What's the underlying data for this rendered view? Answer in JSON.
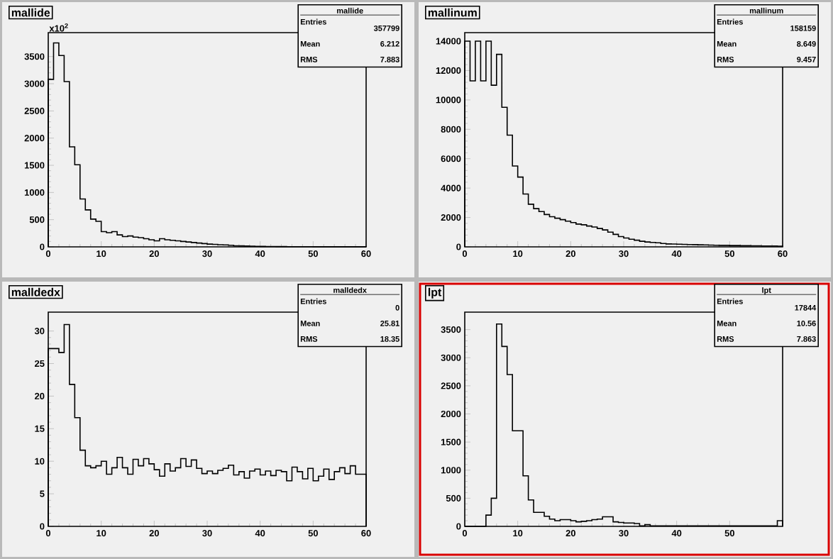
{
  "chart_data": [
    {
      "type": "histogram",
      "title": "mallide",
      "ylabel": "x10$^{2}$",
      "annotations": [
        "mallide",
        "Entries",
        "357799",
        "Mean",
        "6.212",
        "RMS",
        "7.883"
      ],
      "bins": [
        0,
        1,
        2,
        3,
        4,
        5,
        6,
        7,
        8,
        9,
        10,
        11,
        12,
        13,
        14,
        15,
        16,
        17,
        18,
        19,
        20,
        21,
        22,
        23,
        24,
        25,
        26,
        27,
        28,
        29,
        30,
        31,
        32,
        33,
        34,
        35,
        36,
        37,
        38,
        39,
        40,
        41,
        42,
        43,
        44,
        45,
        46,
        47,
        48,
        49,
        50,
        51,
        52,
        53,
        54,
        55,
        56,
        57,
        58,
        59,
        60
      ],
      "values": [
        3080,
        3750,
        3520,
        3040,
        1840,
        1510,
        880,
        680,
        510,
        470,
        280,
        260,
        280,
        220,
        190,
        200,
        180,
        170,
        150,
        130,
        110,
        150,
        130,
        120,
        110,
        100,
        90,
        80,
        70,
        60,
        50,
        45,
        40,
        35,
        30,
        20,
        18,
        15,
        12,
        10,
        8,
        7,
        6,
        5,
        5,
        4,
        4,
        3,
        3,
        3,
        2,
        2,
        2,
        2,
        1,
        1,
        1,
        1,
        1,
        1
      ],
      "xlim": [
        0,
        60
      ],
      "ylim": [
        0,
        3940
      ],
      "xticks": [
        0,
        10,
        20,
        30,
        40,
        50,
        60
      ],
      "yticks": [
        0,
        500,
        1000,
        1500,
        2000,
        2500,
        3000,
        3500
      ]
    },
    {
      "type": "histogram",
      "title": "mallinum",
      "annotations": [
        "mallinum",
        "Entries",
        "158159",
        "Mean",
        "8.649",
        "RMS",
        "9.457"
      ],
      "bins": [
        0,
        1,
        2,
        3,
        4,
        5,
        6,
        7,
        8,
        9,
        10,
        11,
        12,
        13,
        14,
        15,
        16,
        17,
        18,
        19,
        20,
        21,
        22,
        23,
        24,
        25,
        26,
        27,
        28,
        29,
        30,
        31,
        32,
        33,
        34,
        35,
        36,
        37,
        38,
        39,
        40,
        41,
        42,
        43,
        44,
        45,
        46,
        47,
        48,
        49,
        50,
        51,
        52,
        53,
        54,
        55,
        56,
        57,
        58,
        59,
        60
      ],
      "values": [
        14000,
        11300,
        14000,
        11300,
        14000,
        11000,
        13100,
        9500,
        7600,
        5500,
        4750,
        3600,
        2900,
        2600,
        2400,
        2200,
        2050,
        1950,
        1850,
        1750,
        1650,
        1550,
        1500,
        1420,
        1350,
        1250,
        1150,
        1000,
        850,
        700,
        600,
        520,
        450,
        380,
        330,
        300,
        280,
        230,
        200,
        190,
        180,
        170,
        160,
        150,
        140,
        130,
        120,
        110,
        100,
        100,
        90,
        90,
        80,
        80,
        70,
        70,
        60,
        60,
        60,
        50
      ],
      "xlim": [
        0,
        60
      ],
      "ylim": [
        0,
        14580
      ],
      "xticks": [
        0,
        10,
        20,
        30,
        40,
        50,
        60
      ],
      "yticks": [
        0,
        2000,
        4000,
        6000,
        8000,
        10000,
        12000,
        14000
      ]
    },
    {
      "type": "histogram",
      "title": "malldedx",
      "annotations": [
        "malldedx",
        "Entries",
        "0",
        "Mean",
        "25.81",
        "RMS",
        "18.35"
      ],
      "bins": [
        0,
        1,
        2,
        3,
        4,
        5,
        6,
        7,
        8,
        9,
        10,
        11,
        12,
        13,
        14,
        15,
        16,
        17,
        18,
        19,
        20,
        21,
        22,
        23,
        24,
        25,
        26,
        27,
        28,
        29,
        30,
        31,
        32,
        33,
        34,
        35,
        36,
        37,
        38,
        39,
        40,
        41,
        42,
        43,
        44,
        45,
        46,
        47,
        48,
        49,
        50,
        51,
        52,
        53,
        54,
        55,
        56,
        57,
        58,
        59,
        60
      ],
      "values": [
        27.3,
        27.3,
        26.7,
        31,
        21.8,
        16.7,
        11.7,
        9.3,
        9,
        9.3,
        10,
        8,
        9,
        10.6,
        9,
        8,
        10.3,
        9.3,
        10.4,
        9.6,
        8.7,
        7.7,
        9.6,
        8.5,
        9,
        10.4,
        9.2,
        10.2,
        8.9,
        8.1,
        8.5,
        8.1,
        8.6,
        8.9,
        9.4,
        7.9,
        8.4,
        7.4,
        8.5,
        8.8,
        7.9,
        8.5,
        7.8,
        8.6,
        8.4,
        7,
        9.1,
        8.4,
        7.3,
        8.9,
        7,
        7.7,
        8.8,
        7.2,
        8.4,
        9,
        8.1,
        9.3,
        8,
        8
      ],
      "xlim": [
        0,
        60
      ],
      "ylim": [
        0,
        32.9
      ],
      "xticks": [
        0,
        10,
        20,
        30,
        40,
        50,
        60
      ],
      "yticks": [
        0,
        5,
        10,
        15,
        20,
        25,
        30
      ]
    },
    {
      "type": "histogram",
      "title": "lpt",
      "annotations": [
        "lpt",
        "Entries",
        "17844",
        "Mean",
        "10.56",
        "RMS",
        "7.863"
      ],
      "bins": [
        0,
        1,
        2,
        3,
        4,
        5,
        6,
        7,
        8,
        9,
        10,
        11,
        12,
        13,
        14,
        15,
        16,
        17,
        18,
        19,
        20,
        21,
        22,
        23,
        24,
        25,
        26,
        27,
        28,
        29,
        30,
        31,
        32,
        33,
        34,
        35,
        36,
        37,
        38,
        39,
        40,
        41,
        42,
        43,
        44,
        45,
        46,
        47,
        48,
        49,
        50,
        51,
        52,
        53,
        54,
        55,
        56,
        57,
        58,
        59,
        60
      ],
      "values": [
        0,
        0,
        0,
        0,
        200,
        500,
        3600,
        3200,
        2700,
        1700,
        1700,
        900,
        470,
        250,
        250,
        180,
        130,
        100,
        120,
        120,
        100,
        80,
        90,
        100,
        120,
        130,
        170,
        170,
        80,
        70,
        60,
        60,
        50,
        10,
        30,
        10,
        10,
        10,
        10,
        10,
        10,
        10,
        10,
        10,
        10,
        10,
        10,
        10,
        10,
        10,
        10,
        10,
        10,
        10,
        10,
        10,
        10,
        10,
        10,
        100
      ],
      "xlim": [
        0,
        60
      ],
      "ylim": [
        0,
        3811
      ],
      "xticks": [
        0,
        10,
        20,
        30,
        40,
        50
      ],
      "yticks": [
        0,
        500,
        1000,
        1500,
        2000,
        2500,
        3000,
        3500
      ]
    }
  ]
}
